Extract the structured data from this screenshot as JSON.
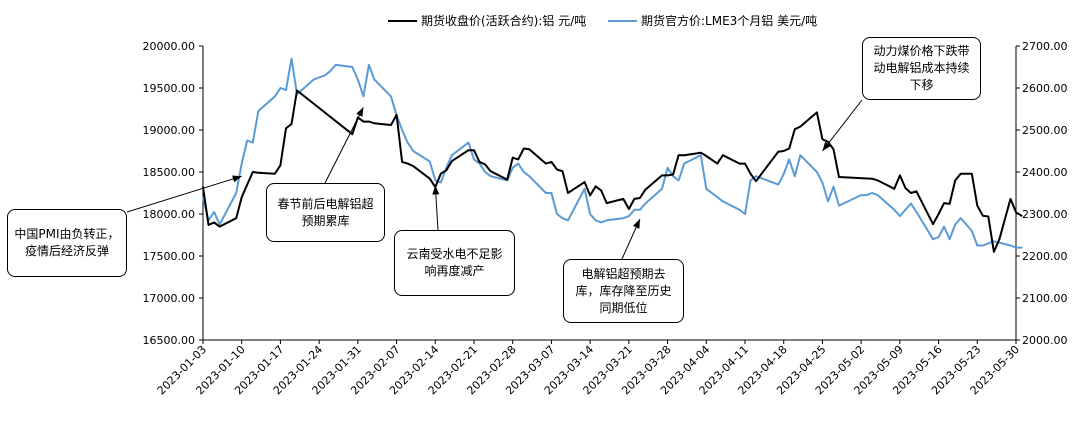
{
  "chart_data": {
    "type": "line",
    "legend_position": "top",
    "grid": false,
    "x": [
      "2023-01-03",
      "2023-01-10",
      "2023-01-17",
      "2023-01-24",
      "2023-01-31",
      "2023-02-07",
      "2023-02-14",
      "2023-02-21",
      "2023-02-28",
      "2023-03-07",
      "2023-03-14",
      "2023-03-21",
      "2023-03-28",
      "2023-04-04",
      "2023-04-11",
      "2023-04-18",
      "2023-04-25",
      "2023-05-02",
      "2023-05-09",
      "2023-05-16",
      "2023-05-23",
      "2023-05-30"
    ],
    "x_ticks": [
      "2023-01-03",
      "2023-01-10",
      "2023-01-17",
      "2023-01-24",
      "2023-01-31",
      "2023-02-07",
      "2023-02-14",
      "2023-02-21",
      "2023-02-28",
      "2023-03-07",
      "2023-03-14",
      "2023-03-21",
      "2023-03-28",
      "2023-04-04",
      "2023-04-11",
      "2023-04-18",
      "2023-04-25",
      "2023-05-02",
      "2023-05-09",
      "2023-05-16",
      "2023-05-23",
      "2023-05-30"
    ],
    "y_left": {
      "ticks": [
        "16500.00",
        "17000.00",
        "17500.00",
        "18000.00",
        "18500.00",
        "19000.00",
        "19500.00",
        "20000.00"
      ],
      "range": [
        16500,
        20000
      ]
    },
    "y_right": {
      "ticks": [
        "2000.00",
        "2100.00",
        "2200.00",
        "2300.00",
        "2400.00",
        "2500.00",
        "2600.00",
        "2700.00"
      ],
      "range": [
        2000,
        2700
      ]
    },
    "series": [
      {
        "name": "期货收盘价(活跃合约):铝  元/吨",
        "color": "#000000",
        "axis": "left",
        "points": [
          [
            "2023-01-03",
            18320
          ],
          [
            "2023-01-04",
            17870
          ],
          [
            "2023-01-05",
            17900
          ],
          [
            "2023-01-06",
            17850
          ],
          [
            "2023-01-09",
            17950
          ],
          [
            "2023-01-10",
            18200
          ],
          [
            "2023-01-11",
            18350
          ],
          [
            "2023-01-12",
            18500
          ],
          [
            "2023-01-13",
            18490
          ],
          [
            "2023-01-16",
            18480
          ],
          [
            "2023-01-17",
            18580
          ],
          [
            "2023-01-18",
            19020
          ],
          [
            "2023-01-19",
            19070
          ],
          [
            "2023-01-20",
            19470
          ],
          [
            "2023-01-30",
            18950
          ],
          [
            "2023-01-31",
            19150
          ],
          [
            "2023-02-01",
            19100
          ],
          [
            "2023-02-02",
            19100
          ],
          [
            "2023-02-03",
            19080
          ],
          [
            "2023-02-06",
            19060
          ],
          [
            "2023-02-07",
            19180
          ],
          [
            "2023-02-08",
            18620
          ],
          [
            "2023-02-09",
            18600
          ],
          [
            "2023-02-10",
            18570
          ],
          [
            "2023-02-13",
            18420
          ],
          [
            "2023-02-14",
            18320
          ],
          [
            "2023-02-15",
            18480
          ],
          [
            "2023-02-16",
            18520
          ],
          [
            "2023-02-17",
            18630
          ],
          [
            "2023-02-20",
            18760
          ],
          [
            "2023-02-21",
            18760
          ],
          [
            "2023-02-22",
            18620
          ],
          [
            "2023-02-23",
            18590
          ],
          [
            "2023-02-24",
            18510
          ],
          [
            "2023-02-27",
            18410
          ],
          [
            "2023-02-28",
            18670
          ],
          [
            "2023-03-01",
            18650
          ],
          [
            "2023-03-02",
            18780
          ],
          [
            "2023-03-03",
            18770
          ],
          [
            "2023-03-06",
            18600
          ],
          [
            "2023-03-07",
            18620
          ],
          [
            "2023-03-08",
            18530
          ],
          [
            "2023-03-09",
            18510
          ],
          [
            "2023-03-10",
            18250
          ],
          [
            "2023-03-13",
            18380
          ],
          [
            "2023-03-14",
            18220
          ],
          [
            "2023-03-15",
            18330
          ],
          [
            "2023-03-16",
            18280
          ],
          [
            "2023-03-17",
            18130
          ],
          [
            "2023-03-20",
            18180
          ],
          [
            "2023-03-21",
            18060
          ],
          [
            "2023-03-22",
            18180
          ],
          [
            "2023-03-23",
            18190
          ],
          [
            "2023-03-24",
            18290
          ],
          [
            "2023-03-27",
            18460
          ],
          [
            "2023-03-28",
            18460
          ],
          [
            "2023-03-29",
            18470
          ],
          [
            "2023-03-30",
            18700
          ],
          [
            "2023-03-31",
            18700
          ],
          [
            "2023-04-03",
            18730
          ],
          [
            "2023-04-04",
            18690
          ],
          [
            "2023-04-06",
            18600
          ],
          [
            "2023-04-07",
            18700
          ],
          [
            "2023-04-10",
            18600
          ],
          [
            "2023-04-11",
            18600
          ],
          [
            "2023-04-12",
            18480
          ],
          [
            "2023-04-13",
            18390
          ],
          [
            "2023-04-14",
            18480
          ],
          [
            "2023-04-17",
            18740
          ],
          [
            "2023-04-18",
            18750
          ],
          [
            "2023-04-19",
            18780
          ],
          [
            "2023-04-20",
            19010
          ],
          [
            "2023-04-21",
            19040
          ],
          [
            "2023-04-24",
            19210
          ],
          [
            "2023-04-25",
            18890
          ],
          [
            "2023-04-26",
            18860
          ],
          [
            "2023-04-27",
            18770
          ],
          [
            "2023-04-28",
            18440
          ],
          [
            "2023-05-04",
            18420
          ],
          [
            "2023-05-05",
            18400
          ],
          [
            "2023-05-08",
            18300
          ],
          [
            "2023-05-09",
            18460
          ],
          [
            "2023-05-10",
            18310
          ],
          [
            "2023-05-11",
            18250
          ],
          [
            "2023-05-12",
            18270
          ],
          [
            "2023-05-15",
            17880
          ],
          [
            "2023-05-16",
            18000
          ],
          [
            "2023-05-17",
            18130
          ],
          [
            "2023-05-18",
            18120
          ],
          [
            "2023-05-19",
            18400
          ],
          [
            "2023-05-20",
            18480
          ],
          [
            "2023-05-22",
            18480
          ],
          [
            "2023-05-23",
            18100
          ],
          [
            "2023-05-24",
            17980
          ],
          [
            "2023-05-25",
            17970
          ],
          [
            "2023-05-26",
            17550
          ],
          [
            "2023-05-27",
            17700
          ],
          [
            "2023-05-29",
            18180
          ],
          [
            "2023-05-30",
            18020
          ],
          [
            "2023-05-31",
            17980
          ]
        ]
      },
      {
        "name": "期货官方价:LME3个月铝  美元/吨",
        "color": "#5b9bd5",
        "axis": "right",
        "points": [
          [
            "2023-01-03",
            2340
          ],
          [
            "2023-01-04",
            2285
          ],
          [
            "2023-01-05",
            2305
          ],
          [
            "2023-01-06",
            2275
          ],
          [
            "2023-01-09",
            2350
          ],
          [
            "2023-01-10",
            2420
          ],
          [
            "2023-01-11",
            2475
          ],
          [
            "2023-01-12",
            2470
          ],
          [
            "2023-01-13",
            2545
          ],
          [
            "2023-01-16",
            2580
          ],
          [
            "2023-01-17",
            2600
          ],
          [
            "2023-01-18",
            2595
          ],
          [
            "2023-01-19",
            2670
          ],
          [
            "2023-01-20",
            2585
          ],
          [
            "2023-01-23",
            2620
          ],
          [
            "2023-01-24",
            2625
          ],
          [
            "2023-01-25",
            2630
          ],
          [
            "2023-01-26",
            2640
          ],
          [
            "2023-01-27",
            2655
          ],
          [
            "2023-01-30",
            2650
          ],
          [
            "2023-01-31",
            2620
          ],
          [
            "2023-02-01",
            2580
          ],
          [
            "2023-02-02",
            2655
          ],
          [
            "2023-02-03",
            2620
          ],
          [
            "2023-02-06",
            2580
          ],
          [
            "2023-02-07",
            2535
          ],
          [
            "2023-02-08",
            2500
          ],
          [
            "2023-02-09",
            2470
          ],
          [
            "2023-02-10",
            2450
          ],
          [
            "2023-02-13",
            2425
          ],
          [
            "2023-02-14",
            2380
          ],
          [
            "2023-02-15",
            2375
          ],
          [
            "2023-02-16",
            2410
          ],
          [
            "2023-02-17",
            2440
          ],
          [
            "2023-02-20",
            2470
          ],
          [
            "2023-02-21",
            2430
          ],
          [
            "2023-02-22",
            2420
          ],
          [
            "2023-02-23",
            2400
          ],
          [
            "2023-02-24",
            2390
          ],
          [
            "2023-02-27",
            2380
          ],
          [
            "2023-02-28",
            2410
          ],
          [
            "2023-03-01",
            2420
          ],
          [
            "2023-03-02",
            2400
          ],
          [
            "2023-03-03",
            2390
          ],
          [
            "2023-03-06",
            2350
          ],
          [
            "2023-03-07",
            2350
          ],
          [
            "2023-03-08",
            2300
          ],
          [
            "2023-03-09",
            2290
          ],
          [
            "2023-03-10",
            2285
          ],
          [
            "2023-03-13",
            2360
          ],
          [
            "2023-03-14",
            2300
          ],
          [
            "2023-03-15",
            2285
          ],
          [
            "2023-03-16",
            2280
          ],
          [
            "2023-03-17",
            2285
          ],
          [
            "2023-03-20",
            2290
          ],
          [
            "2023-03-21",
            2295
          ],
          [
            "2023-03-22",
            2310
          ],
          [
            "2023-03-23",
            2310
          ],
          [
            "2023-03-24",
            2325
          ],
          [
            "2023-03-27",
            2360
          ],
          [
            "2023-03-28",
            2410
          ],
          [
            "2023-03-29",
            2390
          ],
          [
            "2023-03-30",
            2380
          ],
          [
            "2023-03-31",
            2420
          ],
          [
            "2023-04-03",
            2440
          ],
          [
            "2023-04-04",
            2360
          ],
          [
            "2023-04-06",
            2340
          ],
          [
            "2023-04-07",
            2330
          ],
          [
            "2023-04-10",
            2310
          ],
          [
            "2023-04-11",
            2300
          ],
          [
            "2023-04-12",
            2380
          ],
          [
            "2023-04-13",
            2390
          ],
          [
            "2023-04-14",
            2385
          ],
          [
            "2023-04-17",
            2370
          ],
          [
            "2023-04-18",
            2395
          ],
          [
            "2023-04-19",
            2430
          ],
          [
            "2023-04-20",
            2390
          ],
          [
            "2023-04-21",
            2440
          ],
          [
            "2023-04-24",
            2400
          ],
          [
            "2023-04-25",
            2375
          ],
          [
            "2023-04-26",
            2330
          ],
          [
            "2023-04-27",
            2365
          ],
          [
            "2023-04-28",
            2320
          ],
          [
            "2023-05-02",
            2345
          ],
          [
            "2023-05-03",
            2345
          ],
          [
            "2023-05-04",
            2350
          ],
          [
            "2023-05-05",
            2345
          ],
          [
            "2023-05-08",
            2310
          ],
          [
            "2023-05-09",
            2295
          ],
          [
            "2023-05-10",
            2310
          ],
          [
            "2023-05-11",
            2325
          ],
          [
            "2023-05-12",
            2305
          ],
          [
            "2023-05-15",
            2240
          ],
          [
            "2023-05-16",
            2245
          ],
          [
            "2023-05-17",
            2270
          ],
          [
            "2023-05-18",
            2240
          ],
          [
            "2023-05-19",
            2275
          ],
          [
            "2023-05-20",
            2290
          ],
          [
            "2023-05-22",
            2260
          ],
          [
            "2023-05-23",
            2225
          ],
          [
            "2023-05-24",
            2225
          ],
          [
            "2023-05-25",
            2230
          ],
          [
            "2023-05-26",
            2235
          ],
          [
            "2023-05-29",
            2225
          ],
          [
            "2023-05-30",
            2220
          ],
          [
            "2023-05-31",
            2220
          ]
        ]
      }
    ],
    "annotations": [
      {
        "key": "pmi",
        "text": "中国PMI由负转正，疫情后经济反弹",
        "target": [
          "2023-01-10",
          18450
        ]
      },
      {
        "key": "spring",
        "text": "春节前后电解铝超预期累库",
        "target": [
          "2023-02-01",
          19270
        ]
      },
      {
        "key": "yunnan",
        "text": "云南受水电不足影响再度减产",
        "target": [
          "2023-02-14",
          18340
        ]
      },
      {
        "key": "inventory",
        "text": "电解铝超预期去库，库存降至历史同期低位",
        "target": [
          "2023-03-23",
          17940
        ]
      },
      {
        "key": "coal",
        "text": "动力煤价格下跌带动电解铝成本持续下移",
        "target": [
          "2023-04-25",
          18750
        ]
      }
    ]
  }
}
